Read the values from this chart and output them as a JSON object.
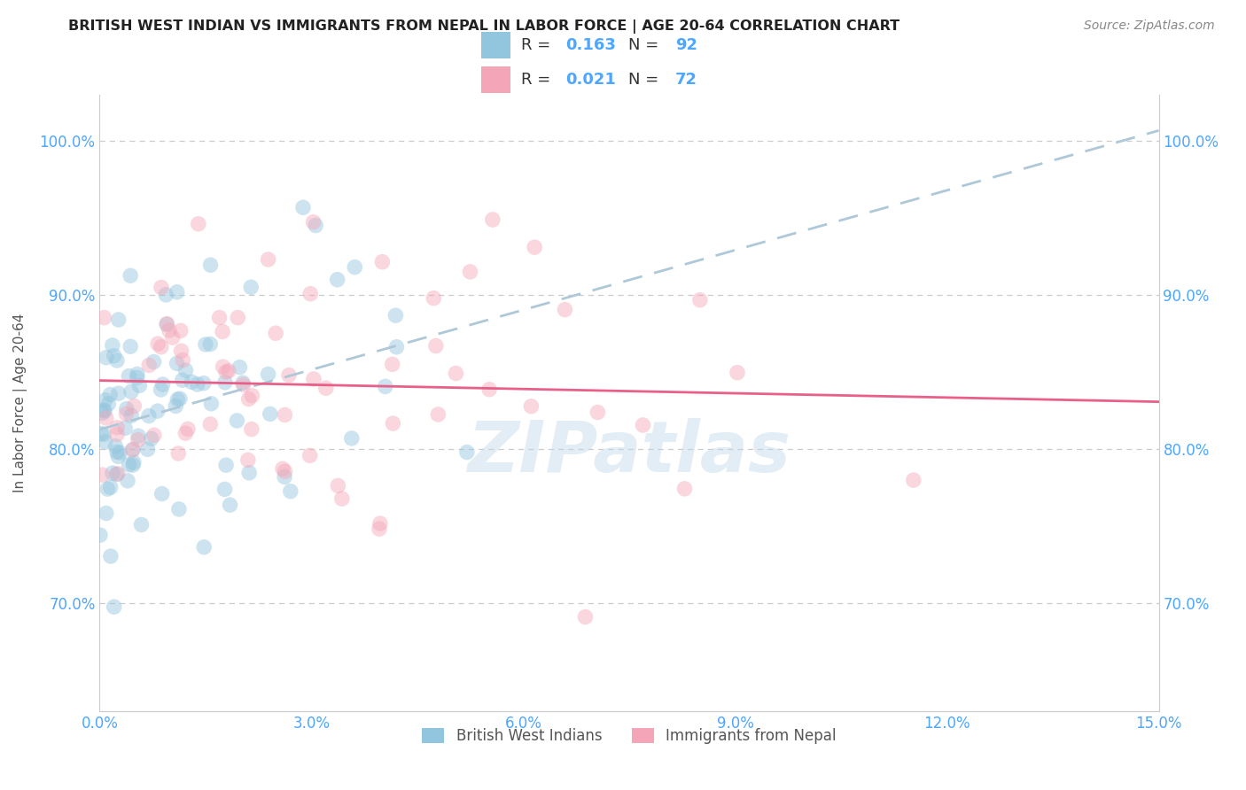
{
  "title": "BRITISH WEST INDIAN VS IMMIGRANTS FROM NEPAL IN LABOR FORCE | AGE 20-64 CORRELATION CHART",
  "source": "Source: ZipAtlas.com",
  "ylabel": "In Labor Force | Age 20-64",
  "xlim": [
    0.0,
    0.15
  ],
  "ylim": [
    0.63,
    1.03
  ],
  "xticks": [
    0.0,
    0.03,
    0.06,
    0.09,
    0.12,
    0.15
  ],
  "xtick_labels": [
    "0.0%",
    "3.0%",
    "6.0%",
    "9.0%",
    "12.0%",
    "15.0%"
  ],
  "yticks": [
    0.7,
    0.8,
    0.9,
    1.0
  ],
  "ytick_labels": [
    "70.0%",
    "80.0%",
    "90.0%",
    "100.0%"
  ],
  "blue_color": "#92c5de",
  "pink_color": "#f4a6b8",
  "blue_line_color": "#aec8d8",
  "pink_line_color": "#e8608a",
  "R_blue": 0.163,
  "N_blue": 92,
  "R_pink": 0.021,
  "N_pink": 72,
  "legend_label_blue": "British West Indians",
  "legend_label_pink": "Immigrants from Nepal",
  "watermark": "ZIPatlas",
  "background_color": "#ffffff",
  "grid_color": "#cccccc",
  "title_color": "#222222",
  "axis_label_color": "#555555",
  "tick_color": "#4da6ff",
  "seed": 42
}
